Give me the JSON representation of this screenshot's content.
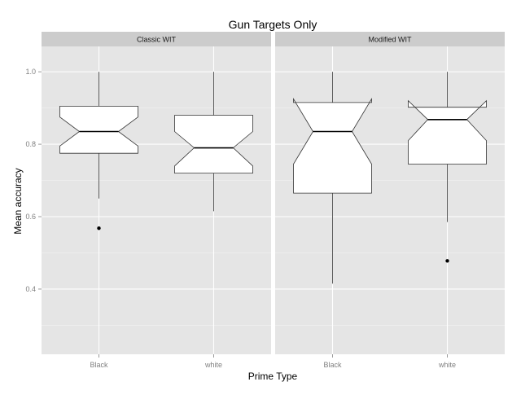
{
  "chart_data": {
    "type": "boxplot",
    "title": "Gun Targets Only",
    "xlabel": "Prime Type",
    "ylabel": "Mean accuracy",
    "ylim": [
      0.22,
      1.07
    ],
    "yticks": [
      0.4,
      0.6,
      0.8,
      1.0
    ],
    "ytick_labels": [
      "0.4",
      "0.6",
      "0.8",
      "1.0"
    ],
    "notched": true,
    "grid": true,
    "categories": [
      "Black",
      "white"
    ],
    "panels": [
      {
        "strip": "Classic WIT",
        "boxes": [
          {
            "category": "Black",
            "whisker_low": 0.65,
            "q1": 0.775,
            "median": 0.835,
            "q3": 0.905,
            "whisker_high": 1.0,
            "notch_low": 0.795,
            "notch_high": 0.875,
            "outliers": [
              0.568
            ]
          },
          {
            "category": "white",
            "whisker_low": 0.615,
            "q1": 0.72,
            "median": 0.79,
            "q3": 0.88,
            "whisker_high": 1.0,
            "notch_low": 0.74,
            "notch_high": 0.835,
            "outliers": []
          }
        ]
      },
      {
        "strip": "Modified WIT",
        "boxes": [
          {
            "category": "Black",
            "whisker_low": 0.415,
            "q1": 0.665,
            "median": 0.835,
            "q3": 0.915,
            "whisker_high": 1.0,
            "notch_low": 0.745,
            "notch_high": 0.925,
            "outliers": []
          },
          {
            "category": "white",
            "whisker_low": 0.585,
            "q1": 0.745,
            "median": 0.868,
            "q3": 0.902,
            "whisker_high": 1.0,
            "notch_low": 0.81,
            "notch_high": 0.92,
            "outliers": [
              0.478
            ]
          }
        ]
      }
    ]
  },
  "colors": {
    "panel_bg": "#e5e5e5",
    "strip_bg": "#cccccc",
    "grid_major": "#ffffff",
    "grid_minor": "#f2f2f2",
    "box_fill": "#ffffff",
    "box_line": "#333333",
    "whisker": "#333333",
    "outlier": "#000000"
  }
}
